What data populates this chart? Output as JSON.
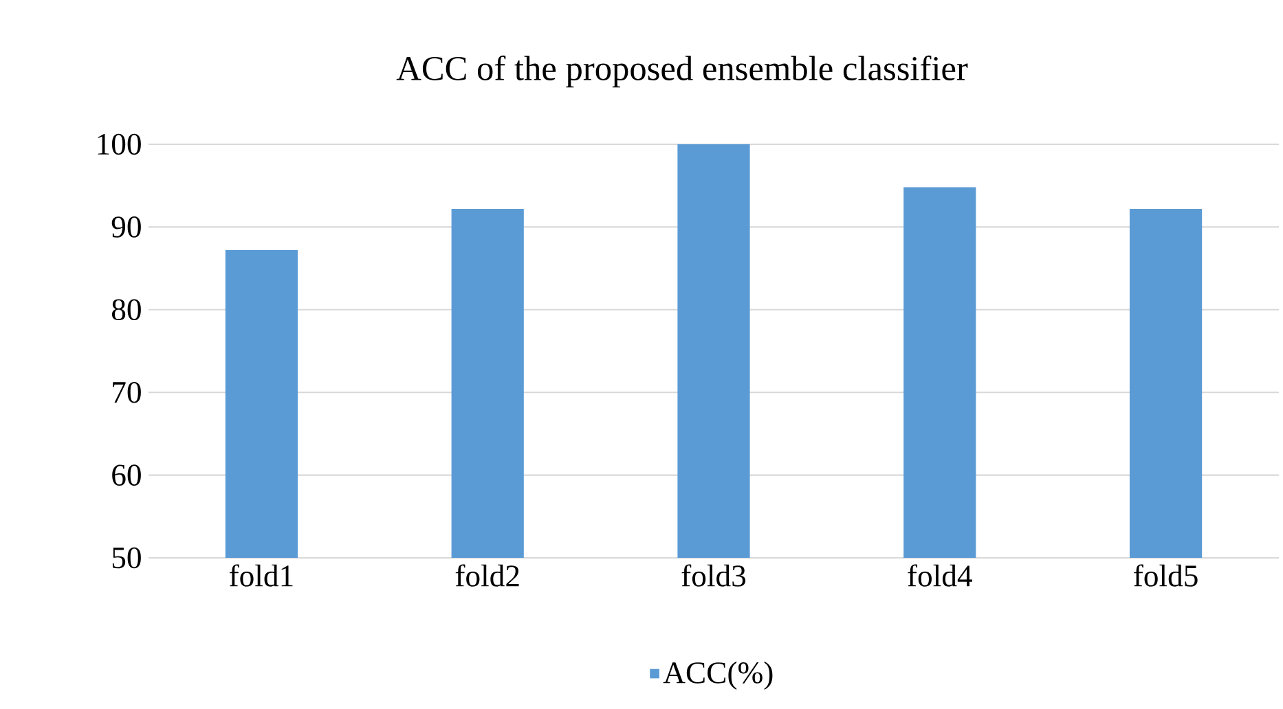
{
  "chart_data": {
    "type": "bar",
    "title": "ACC of the proposed ensemble classifier",
    "categories": [
      "fold1",
      "fold2",
      "fold3",
      "fold4",
      "fold5"
    ],
    "series": [
      {
        "name": "ACC(%)",
        "color": "#5b9bd5",
        "values": [
          87.2,
          92.2,
          100,
          94.8,
          92.2
        ]
      }
    ],
    "ylim": [
      50,
      100
    ],
    "yticks": [
      50,
      60,
      70,
      80,
      90,
      100
    ],
    "grid": "y",
    "legend": "bottom"
  }
}
